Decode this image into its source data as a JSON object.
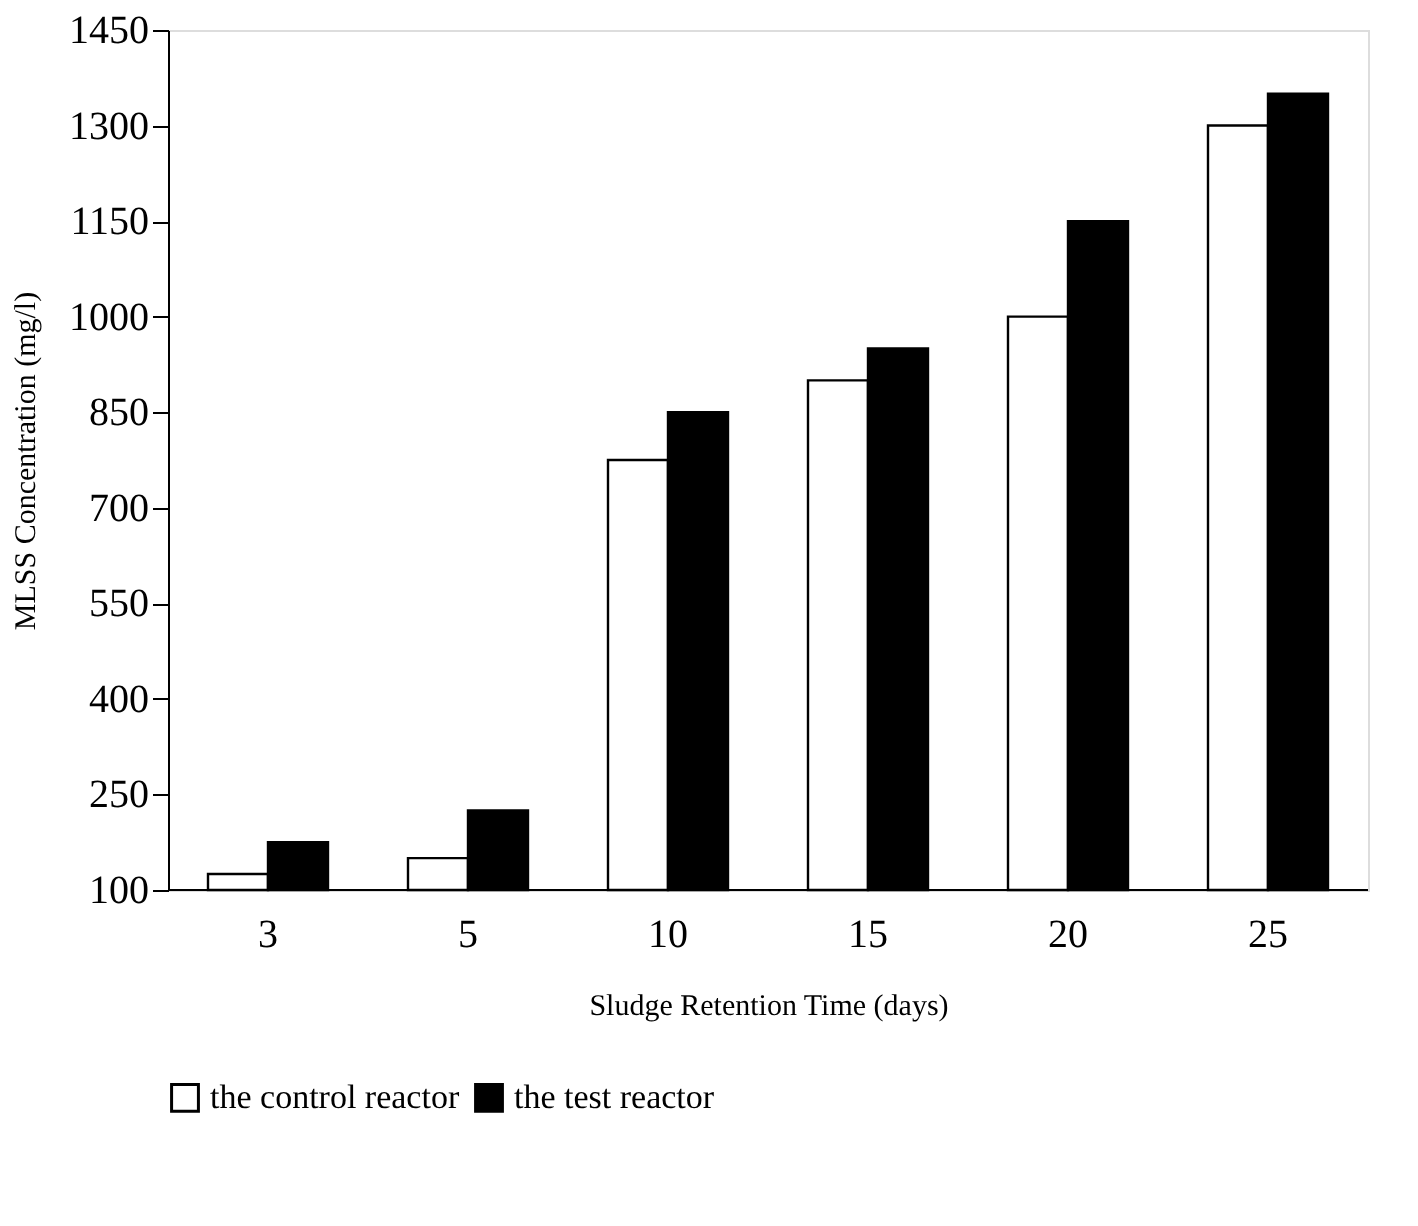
{
  "chart_data": {
    "type": "bar",
    "xlabel": "Sludge Retention Time (days)",
    "ylabel": "MLSS Concentration (mg/l)",
    "categories": [
      "3",
      "5",
      "10",
      "15",
      "20",
      "25"
    ],
    "series": [
      {
        "name": "the control reactor",
        "color": "#ffffff",
        "values": [
          125,
          150,
          775,
          900,
          1000,
          1300
        ]
      },
      {
        "name": "the test reactor",
        "color": "#000000",
        "values": [
          175,
          225,
          850,
          950,
          1150,
          1350
        ]
      }
    ],
    "ylim": [
      100,
      1450
    ],
    "yticks": [
      100,
      250,
      400,
      550,
      700,
      850,
      1000,
      1150,
      1300,
      1450
    ],
    "grid": false,
    "legend": "bottom"
  }
}
